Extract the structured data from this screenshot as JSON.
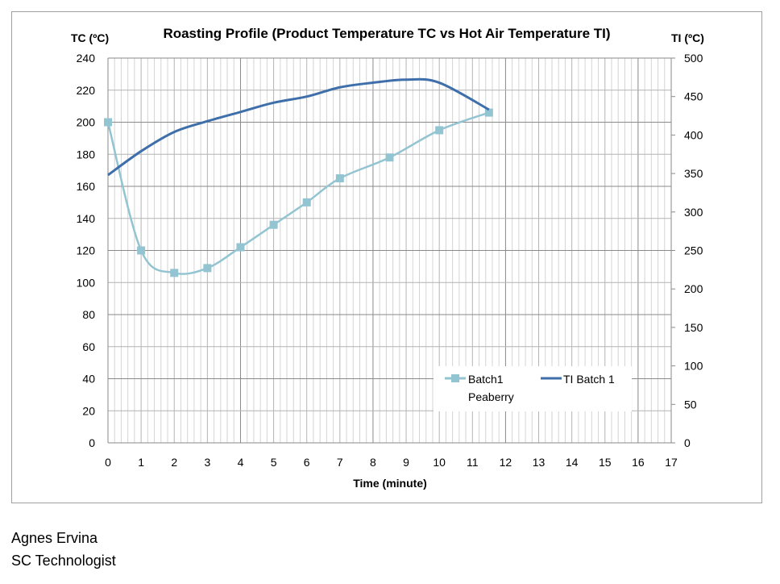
{
  "chart_data": {
    "type": "line",
    "title": "Roasting Profile (Product Temperature TC vs Hot Air Temperature TI)",
    "xlabel": "Time (minute)",
    "ylabel": "TC  (ºC)",
    "y2label": "TI (ºC)",
    "xlim": [
      0,
      17
    ],
    "ylim": [
      0,
      240
    ],
    "y2lim": [
      0,
      500
    ],
    "xticks": [
      0,
      1,
      2,
      3,
      4,
      5,
      6,
      7,
      8,
      9,
      10,
      11,
      12,
      13,
      14,
      15,
      16,
      17
    ],
    "yticks": [
      0,
      20,
      40,
      60,
      80,
      100,
      120,
      140,
      160,
      180,
      200,
      220,
      240
    ],
    "y2ticks": [
      0,
      50,
      100,
      150,
      200,
      250,
      300,
      350,
      400,
      450,
      500
    ],
    "grid": true,
    "legend_position": "bottom-right",
    "series": [
      {
        "name": "Batch1 Peaberry",
        "legend_lines": [
          "Batch1",
          "Peaberry"
        ],
        "axis": "left",
        "color": "#93c4d2",
        "marker": "square",
        "x": [
          0,
          1,
          2,
          3,
          4,
          5,
          6,
          7,
          8.5,
          10,
          11.5
        ],
        "y": [
          200,
          120,
          106,
          109,
          122,
          136,
          150,
          165,
          178,
          195,
          206
        ]
      },
      {
        "name": "TI Batch 1",
        "legend_lines": [
          "TI Batch 1"
        ],
        "axis": "right",
        "color": "#3f6faa",
        "marker": "none",
        "x": [
          0,
          1,
          2,
          3,
          4,
          5,
          6,
          7,
          8,
          9,
          10,
          11.5
        ],
        "y": [
          348,
          379,
          404,
          418,
          430,
          442,
          450,
          462,
          468,
          472,
          468,
          433
        ]
      }
    ]
  },
  "footer": {
    "name": "Agnes Ervina",
    "role": "SC Technologist"
  }
}
